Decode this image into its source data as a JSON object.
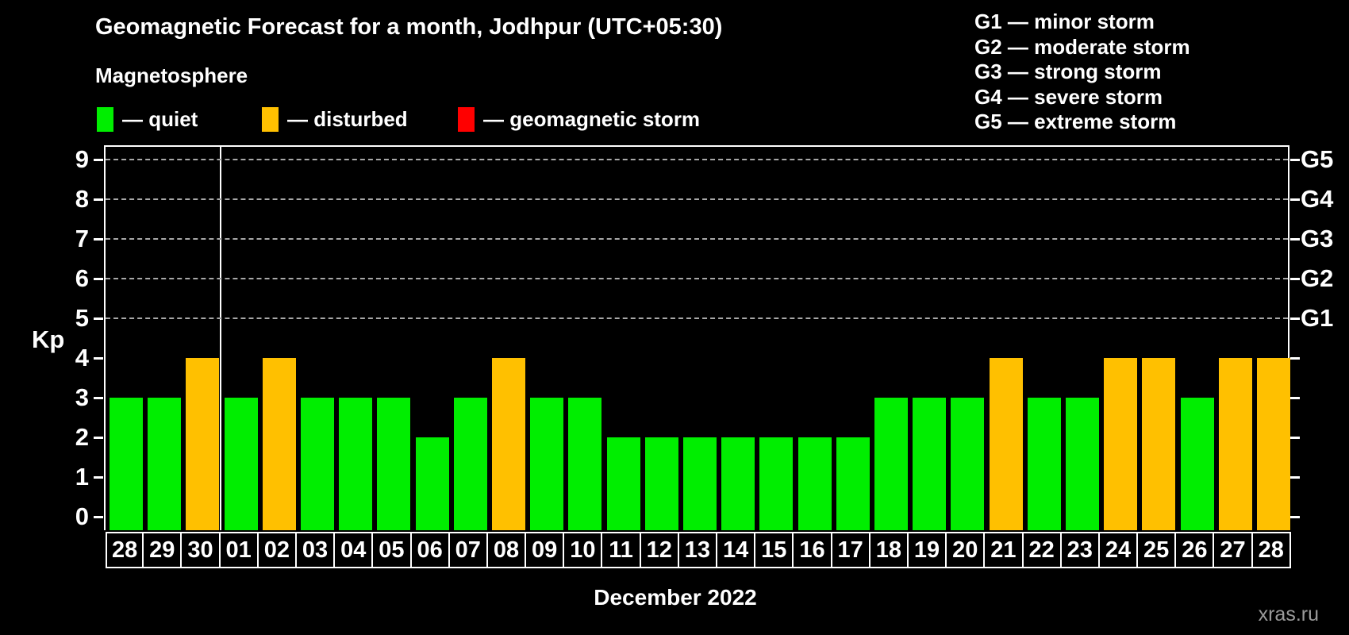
{
  "title": "Geomagnetic Forecast for a month, Jodhpur (UTC+05:30)",
  "subtitle": "Magnetosphere",
  "status_legend": {
    "quiet": {
      "label": "— quiet",
      "color": "#00ee00"
    },
    "disturbed": {
      "label": "— disturbed",
      "color": "#ffc000"
    },
    "storm": {
      "label": "— geomagnetic storm",
      "color": "#ff0000"
    }
  },
  "storm_scale_legend": [
    "G1 — minor storm",
    "G2 — moderate storm",
    "G3 — strong storm",
    "G4 — severe storm",
    "G5 — extreme storm"
  ],
  "watermark": "xras.ru",
  "chart_data": {
    "type": "bar",
    "title": "Geomagnetic Forecast for a month, Jodhpur (UTC+05:30)",
    "subtitle": "Magnetosphere",
    "xlabel": "December 2022",
    "ylabel": "Kp",
    "ylim": [
      0,
      9
    ],
    "y_ticks": [
      0,
      1,
      2,
      3,
      4,
      5,
      6,
      7,
      8,
      9
    ],
    "gridlines_at": [
      5,
      6,
      7,
      8,
      9
    ],
    "grid": "dashed, only at storm levels G1-G5",
    "legend_position": "top",
    "right_axis_labels": [
      {
        "label": "G1",
        "kp": 5
      },
      {
        "label": "G2",
        "kp": 6
      },
      {
        "label": "G3",
        "kp": 7
      },
      {
        "label": "G4",
        "kp": 8
      },
      {
        "label": "G5",
        "kp": 9
      }
    ],
    "month_boundary_after_index": 2,
    "categories": [
      "28",
      "29",
      "30",
      "01",
      "02",
      "03",
      "04",
      "05",
      "06",
      "07",
      "08",
      "09",
      "10",
      "11",
      "12",
      "13",
      "14",
      "15",
      "16",
      "17",
      "18",
      "19",
      "20",
      "21",
      "22",
      "23",
      "24",
      "25",
      "26",
      "27",
      "28"
    ],
    "values": [
      3,
      3,
      4,
      3,
      4,
      3,
      3,
      3,
      2,
      3,
      4,
      3,
      3,
      2,
      2,
      2,
      2,
      2,
      2,
      2,
      3,
      3,
      3,
      4,
      3,
      3,
      4,
      4,
      3,
      4,
      4
    ],
    "statuses": [
      "quiet",
      "quiet",
      "disturbed",
      "quiet",
      "disturbed",
      "quiet",
      "quiet",
      "quiet",
      "quiet",
      "quiet",
      "disturbed",
      "quiet",
      "quiet",
      "quiet",
      "quiet",
      "quiet",
      "quiet",
      "quiet",
      "quiet",
      "quiet",
      "quiet",
      "quiet",
      "quiet",
      "disturbed",
      "quiet",
      "quiet",
      "disturbed",
      "disturbed",
      "quiet",
      "disturbed",
      "disturbed"
    ]
  }
}
